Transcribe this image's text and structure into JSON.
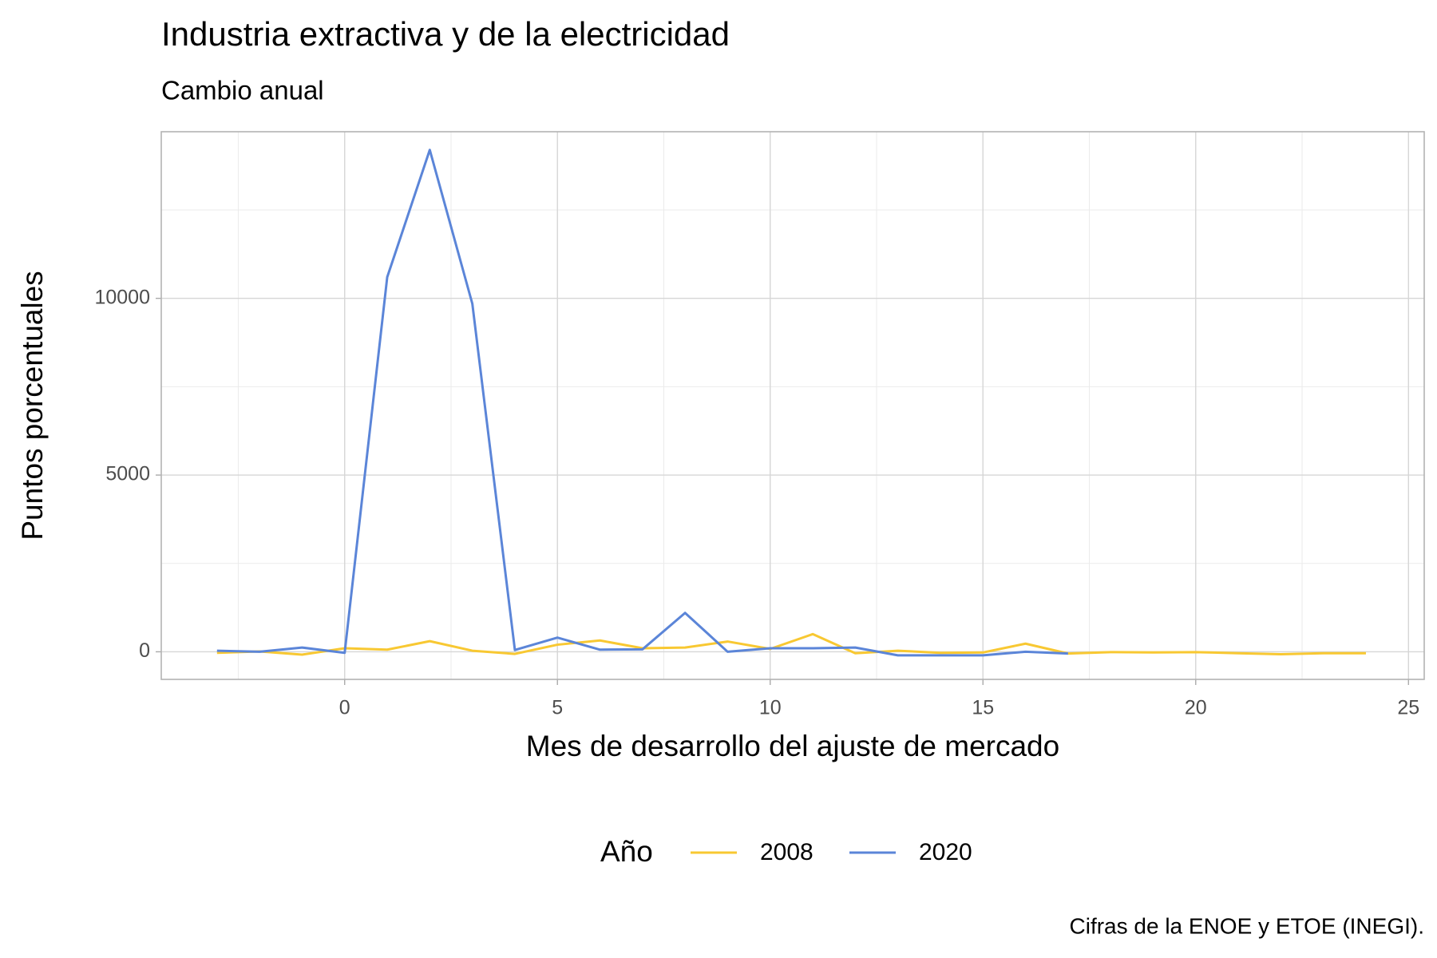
{
  "chart_data": {
    "type": "line",
    "title": "Industria extractiva y de la electricidad",
    "subtitle": "Cambio anual",
    "x_label": "Mes de desarrollo del ajuste de mercado",
    "y_label": "Puntos porcentuales",
    "caption": "Cifras de la ENOE y ETOE (INEGI).",
    "legend_title": "Año",
    "legend_position": "bottom",
    "grid": true,
    "series": [
      {
        "name": "2008",
        "color": "#F8C832",
        "x": [
          -3,
          -2,
          -1,
          0,
          1,
          2,
          3,
          4,
          5,
          6,
          7,
          8,
          9,
          10,
          11,
          12,
          13,
          14,
          15,
          16,
          17,
          18,
          19,
          20,
          21,
          22,
          23,
          24
        ],
        "values": [
          -30,
          10,
          -80,
          100,
          60,
          300,
          30,
          -60,
          200,
          320,
          100,
          120,
          290,
          80,
          500,
          -40,
          30,
          -30,
          -20,
          230,
          -50,
          -10,
          -20,
          -10,
          -40,
          -70,
          -40,
          -40
        ]
      },
      {
        "name": "2020",
        "color": "#5B85D8",
        "x": [
          -3,
          -2,
          -1,
          0,
          1,
          2,
          3,
          4,
          5,
          6,
          7,
          8,
          9,
          10,
          11,
          12,
          13,
          14,
          15,
          16,
          17
        ],
        "values": [
          30,
          0,
          120,
          -30,
          10600,
          14200,
          9850,
          50,
          400,
          60,
          70,
          1100,
          0,
          100,
          100,
          120,
          -100,
          -100,
          -100,
          0,
          -50
        ]
      }
    ],
    "xlim": [
      -4.31,
      25.37
    ],
    "xticks": [
      0,
      5,
      10,
      15,
      20,
      25
    ],
    "ylim": [
      -781,
      14714
    ],
    "yticks": [
      0,
      5000,
      10000
    ]
  }
}
